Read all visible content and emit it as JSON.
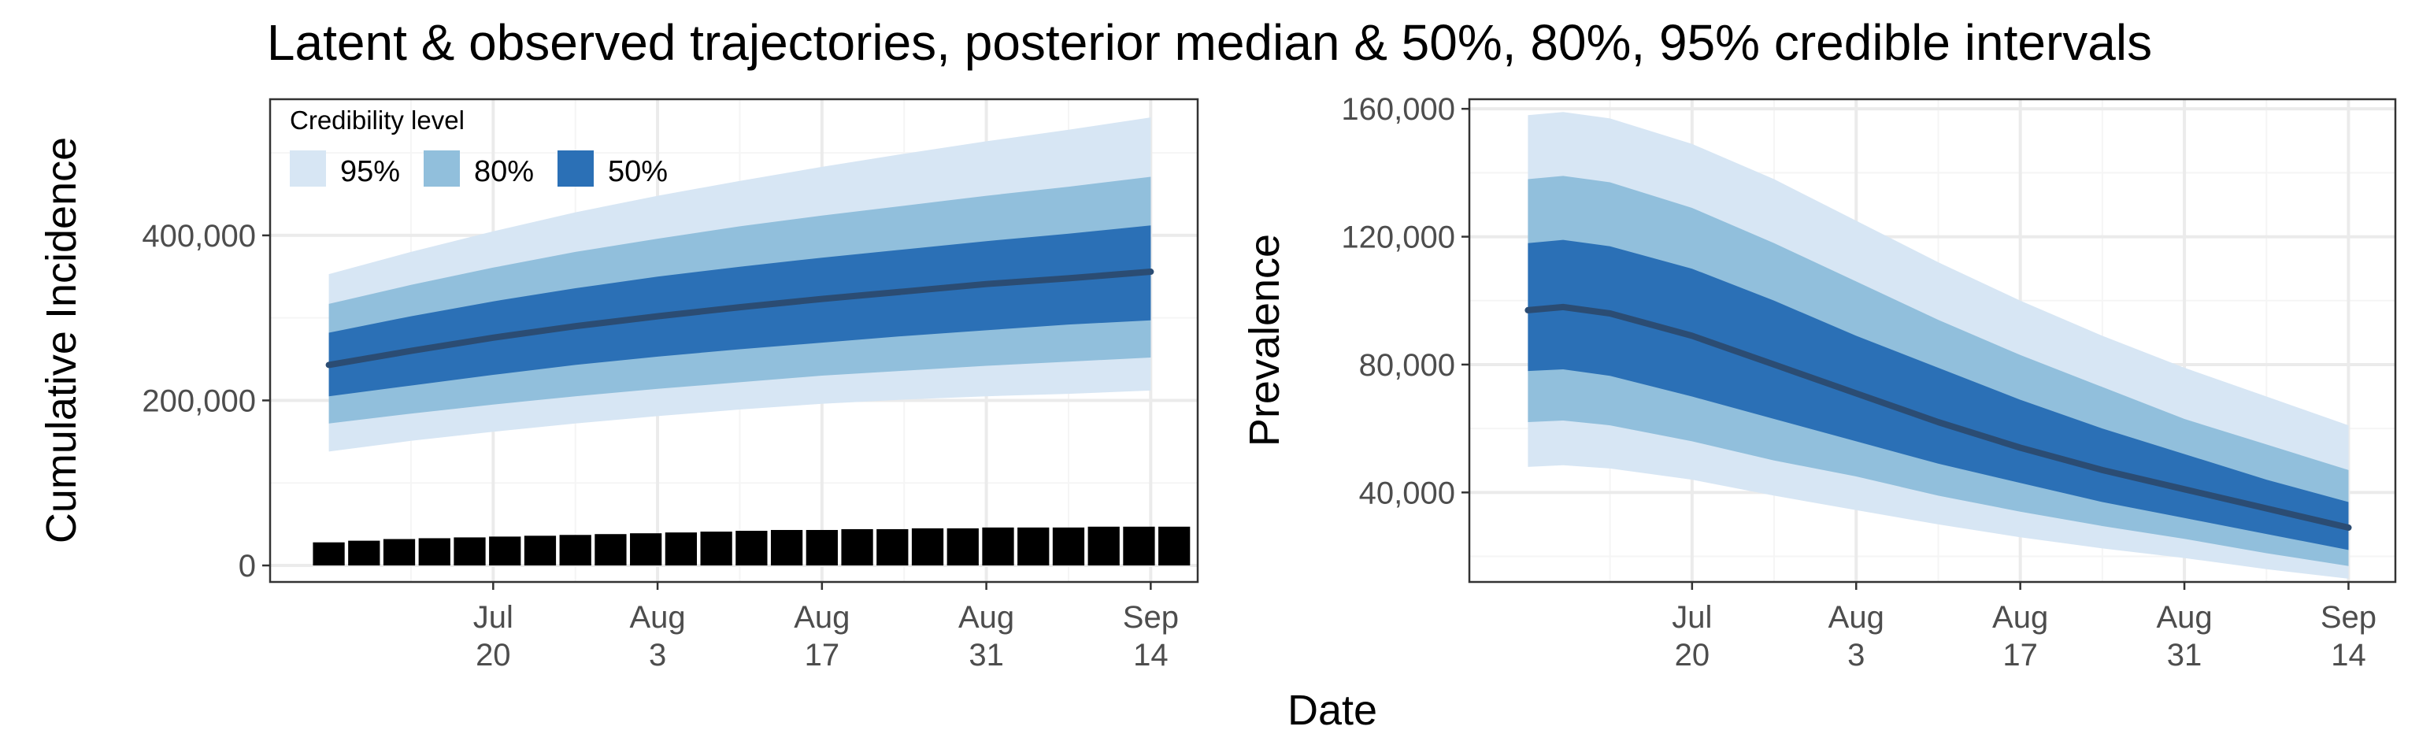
{
  "figure": {
    "title": "Latent & observed trajectories, posterior median & 50%, 80%, 95% credible intervals",
    "xlabel": "Date"
  },
  "colors": {
    "band95": "#d7e6f4",
    "band80": "#91bfdc",
    "band50": "#2b70b6",
    "median": "#2b4c73",
    "bars": "#000000",
    "grid_major": "#ebebeb",
    "grid_minor": "#f5f5f5",
    "panel_border": "#333333"
  },
  "legend": {
    "title": "Credibility level",
    "placement": "top-left inside left panel",
    "items": [
      {
        "label": "95%",
        "color": "#d7e6f4"
      },
      {
        "label": "80%",
        "color": "#91bfdc"
      },
      {
        "label": "50%",
        "color": "#2b70b6"
      }
    ]
  },
  "chart_data": [
    {
      "type": "area",
      "ylabel": "Cumulative Incidence",
      "xlabel": "",
      "x_is_date": true,
      "xlim": [
        "2020-07-01",
        "2020-09-18"
      ],
      "ylim": [
        -20000,
        565000
      ],
      "yticks": [
        0,
        200000,
        400000
      ],
      "ytick_labels": [
        "0",
        "200,000",
        "400,000"
      ],
      "xticks": [
        "2020-07-20",
        "2020-08-03",
        "2020-08-17",
        "2020-08-31",
        "2020-09-14"
      ],
      "xtick_labels": [
        [
          "Jul",
          "20"
        ],
        [
          "Aug",
          "3"
        ],
        [
          "Aug",
          "17"
        ],
        [
          "Aug",
          "31"
        ],
        [
          "Sep",
          "14"
        ]
      ],
      "grid": true,
      "x": [
        "2020-07-06",
        "2020-07-13",
        "2020-07-20",
        "2020-07-27",
        "2020-08-03",
        "2020-08-10",
        "2020-08-17",
        "2020-08-24",
        "2020-08-31",
        "2020-09-07",
        "2020-09-14"
      ],
      "median": [
        243000,
        260000,
        276000,
        290000,
        302000,
        313000,
        323000,
        332000,
        341000,
        348000,
        356000
      ],
      "lower50": [
        205000,
        218000,
        231000,
        243000,
        253000,
        262000,
        270000,
        278000,
        285000,
        292000,
        297000
      ],
      "upper50": [
        282000,
        302000,
        320000,
        336000,
        350000,
        362000,
        373000,
        383000,
        393000,
        402000,
        412000
      ],
      "lower80": [
        172000,
        184000,
        195000,
        205000,
        214000,
        222000,
        230000,
        236000,
        242000,
        247000,
        252000
      ],
      "upper80": [
        317000,
        340000,
        361000,
        380000,
        396000,
        411000,
        424000,
        436000,
        448000,
        459000,
        471000
      ],
      "lower95": [
        138000,
        151000,
        162000,
        172000,
        181000,
        189000,
        196000,
        201000,
        205000,
        208000,
        212000
      ],
      "upper95": [
        353000,
        380000,
        405000,
        428000,
        448000,
        466000,
        483000,
        499000,
        514000,
        528000,
        543000
      ],
      "bars": {
        "dates": [
          "2020-07-06",
          "2020-07-09",
          "2020-07-12",
          "2020-07-15",
          "2020-07-18",
          "2020-07-21",
          "2020-07-24",
          "2020-07-27",
          "2020-07-30",
          "2020-08-02",
          "2020-08-05",
          "2020-08-08",
          "2020-08-11",
          "2020-08-14",
          "2020-08-17",
          "2020-08-20",
          "2020-08-23",
          "2020-08-26",
          "2020-08-29",
          "2020-09-01",
          "2020-09-04",
          "2020-09-07",
          "2020-09-10",
          "2020-09-13",
          "2020-09-16"
        ],
        "values": [
          28000,
          30000,
          32000,
          33000,
          34000,
          35000,
          36000,
          37000,
          38000,
          39000,
          40000,
          41000,
          42000,
          43000,
          43000,
          44000,
          44000,
          45000,
          45000,
          46000,
          46000,
          46000,
          47000,
          47000,
          47000
        ]
      }
    },
    {
      "type": "area",
      "ylabel": "Prevalence",
      "xlabel": "",
      "x_is_date": true,
      "xlim": [
        "2020-07-01",
        "2020-09-18"
      ],
      "ylim": [
        12000,
        163000
      ],
      "yticks": [
        40000,
        80000,
        120000,
        160000
      ],
      "ytick_labels": [
        "40,000",
        "80,000",
        "120,000",
        "160,000"
      ],
      "xticks": [
        "2020-07-20",
        "2020-08-03",
        "2020-08-17",
        "2020-08-31",
        "2020-09-14"
      ],
      "xtick_labels": [
        [
          "Jul",
          "20"
        ],
        [
          "Aug",
          "3"
        ],
        [
          "Aug",
          "17"
        ],
        [
          "Aug",
          "31"
        ],
        [
          "Sep",
          "14"
        ]
      ],
      "grid": true,
      "x": [
        "2020-07-06",
        "2020-07-09",
        "2020-07-13",
        "2020-07-20",
        "2020-07-27",
        "2020-08-03",
        "2020-08-10",
        "2020-08-17",
        "2020-08-24",
        "2020-08-31",
        "2020-09-07",
        "2020-09-14"
      ],
      "median": [
        97000,
        98000,
        96000,
        89000,
        80000,
        71000,
        62000,
        54000,
        47000,
        41000,
        35000,
        29000
      ],
      "lower50": [
        78000,
        78500,
        76500,
        70000,
        63000,
        56000,
        49000,
        43000,
        37000,
        32000,
        27000,
        22000
      ],
      "upper50": [
        118000,
        119000,
        117000,
        110000,
        100000,
        89000,
        79000,
        69000,
        60000,
        52000,
        44000,
        37000
      ],
      "lower80": [
        62000,
        62500,
        61000,
        56000,
        50000,
        45000,
        39000,
        34000,
        29500,
        25500,
        21000,
        17000
      ],
      "upper80": [
        138000,
        139000,
        137000,
        129000,
        118000,
        106000,
        94000,
        83000,
        73000,
        63000,
        55000,
        47000
      ],
      "lower95": [
        48000,
        48500,
        47500,
        44000,
        39000,
        34500,
        30000,
        26000,
        22500,
        19500,
        16000,
        13000
      ],
      "upper95": [
        158000,
        159000,
        157000,
        149000,
        138000,
        125000,
        112000,
        100000,
        89000,
        79000,
        70000,
        61000
      ]
    }
  ]
}
